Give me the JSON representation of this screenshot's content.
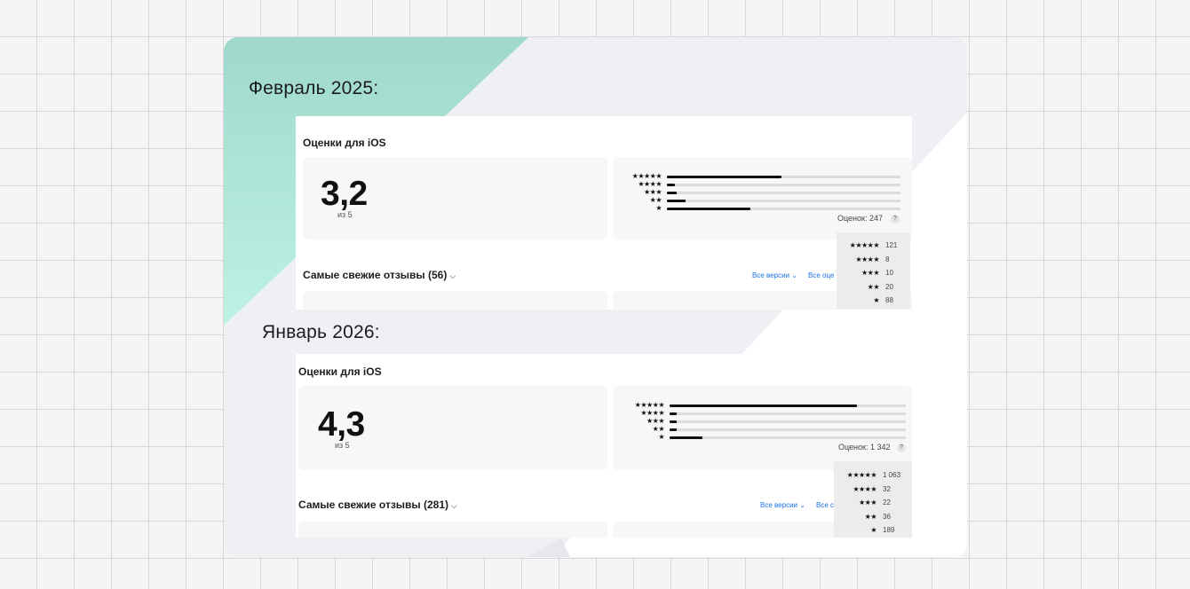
{
  "periods": [
    {
      "heading": "Февраль 2025:",
      "section_title": "Оценки для iOS",
      "average": "3,2",
      "out_of": "из 5",
      "total_label": "Оценок: 247",
      "help": "?",
      "reviews_title": "Самые свежие отзывы (56)",
      "filter_versions": "Все версии",
      "filter_ratings": "Все оце",
      "distribution": [
        {
          "stars": "★★★★★",
          "count": "121",
          "share": 121
        },
        {
          "stars": "★★★★",
          "count": "8",
          "share": 8
        },
        {
          "stars": "★★★",
          "count": "10",
          "share": 10
        },
        {
          "stars": "★★",
          "count": "20",
          "share": 20
        },
        {
          "stars": "★",
          "count": "88",
          "share": 88
        }
      ],
      "total": 247
    },
    {
      "heading": "Январь 2026:",
      "section_title": "Оценки для iOS",
      "average": "4,3",
      "out_of": "из 5",
      "total_label": "Оценок: 1 342",
      "help": "?",
      "reviews_title": "Самые свежие отзывы (281)",
      "filter_versions": "Все версии",
      "filter_ratings": "Все с",
      "distribution": [
        {
          "stars": "★★★★★",
          "count": "1 063",
          "share": 1063
        },
        {
          "stars": "★★★★",
          "count": "32",
          "share": 32
        },
        {
          "stars": "★★★",
          "count": "22",
          "share": 22
        },
        {
          "stars": "★★",
          "count": "36",
          "share": 36
        },
        {
          "stars": "★",
          "count": "189",
          "share": 189
        }
      ],
      "total": 1342
    }
  ],
  "colors": {
    "accent_gradient_top": "#9fd9cb",
    "accent_gradient_bottom": "#b9f0e2",
    "link": "#1a73e8"
  }
}
